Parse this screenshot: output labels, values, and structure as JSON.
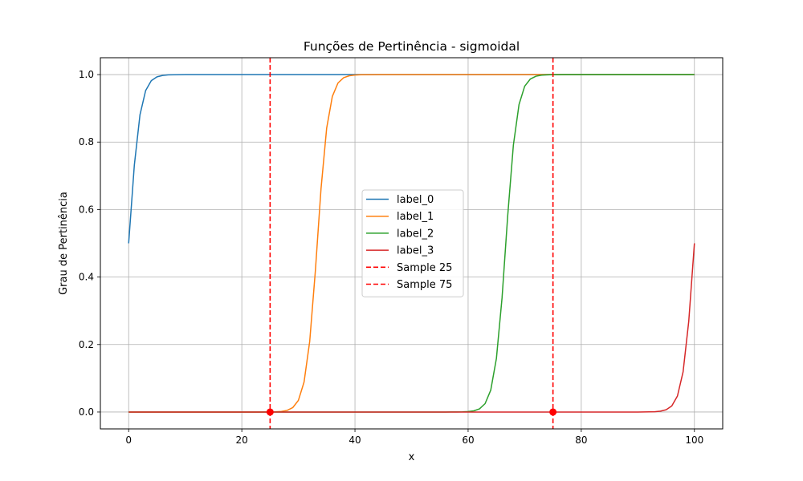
{
  "chart_data": {
    "type": "line",
    "title": "Funções de Pertinência - sigmoidal",
    "xlabel": "x",
    "ylabel": "Grau de Pertinência",
    "xlim": [
      -5,
      105
    ],
    "ylim": [
      -0.05,
      1.05
    ],
    "xticks": [
      0,
      20,
      40,
      60,
      80,
      100
    ],
    "yticks": [
      0.0,
      0.2,
      0.4,
      0.6,
      0.8,
      1.0
    ],
    "xtick_labels": [
      "0",
      "20",
      "40",
      "60",
      "80",
      "100"
    ],
    "ytick_labels": [
      "0.0",
      "0.2",
      "0.4",
      "0.6",
      "0.8",
      "1.0"
    ],
    "grid": true,
    "legend_position": "center",
    "series": [
      {
        "name": "label_0",
        "color": "#1f77b4",
        "curve": {
          "kind": "sigmoid",
          "center": 0,
          "slope": 1
        }
      },
      {
        "name": "label_1",
        "color": "#ff7f0e",
        "curve": {
          "kind": "sigmoid",
          "center": 33.33,
          "slope": 1
        }
      },
      {
        "name": "label_2",
        "color": "#2ca02c",
        "curve": {
          "kind": "sigmoid",
          "center": 66.67,
          "slope": 1
        }
      },
      {
        "name": "label_3",
        "color": "#d62728",
        "curve": {
          "kind": "sigmoid",
          "center": 100,
          "slope": 1
        }
      }
    ],
    "x_sampling": {
      "start": 0,
      "end": 100,
      "count": 101
    },
    "vlines": [
      {
        "name": "Sample 25",
        "x": 25,
        "color": "#ff0000",
        "marker_y": 0
      },
      {
        "name": "Sample 75",
        "x": 75,
        "color": "#ff0000",
        "marker_y": 0
      }
    ]
  }
}
